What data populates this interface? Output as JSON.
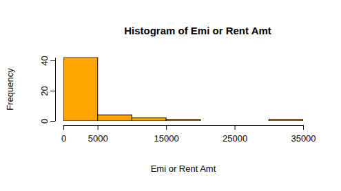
{
  "chart_data": {
    "type": "histogram",
    "title": "Histogram of Emi or Rent Amt",
    "x_label": "Emi or Rent Amt",
    "y_label": "Frequency",
    "bins": [
      0,
      5000,
      10000,
      15000,
      20000,
      25000,
      30000,
      35000
    ],
    "counts": [
      42,
      4,
      2,
      1,
      0,
      0,
      1
    ],
    "color": "#ffa500",
    "xlim": [
      0,
      35000
    ],
    "xticks": [
      0,
      5000,
      15000,
      25000,
      35000
    ],
    "ylim": [
      0,
      42
    ],
    "yticks": [
      0,
      20,
      40
    ]
  }
}
